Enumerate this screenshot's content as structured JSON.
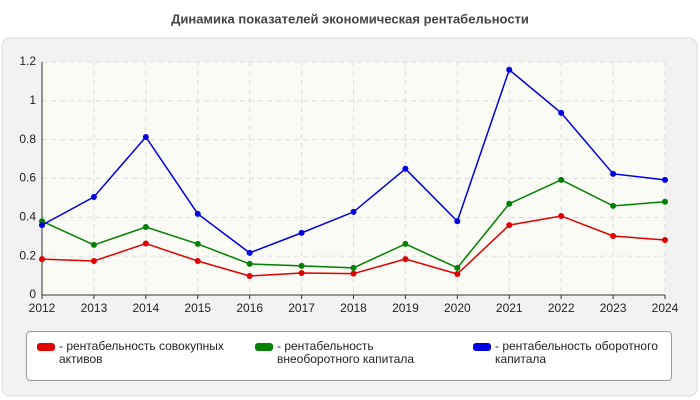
{
  "chart_data": {
    "type": "line",
    "title": "Динамика показателей экономическая рентабельности",
    "categories": [
      "2012",
      "2013",
      "2014",
      "2015",
      "2016",
      "2017",
      "2018",
      "2019",
      "2020",
      "2021",
      "2022",
      "2023",
      "2024"
    ],
    "series": [
      {
        "name": "- рентабельность совокупных активов",
        "color": "#e00000",
        "values": [
          0.185,
          0.175,
          0.265,
          0.175,
          0.098,
          0.113,
          0.11,
          0.185,
          0.108,
          0.36,
          0.407,
          0.304,
          0.283
        ]
      },
      {
        "name": "- рентабельность внеоборотного капитала",
        "color": "#008000",
        "values": [
          0.38,
          0.258,
          0.35,
          0.263,
          0.16,
          0.15,
          0.14,
          0.263,
          0.14,
          0.47,
          0.593,
          0.459,
          0.48
        ]
      },
      {
        "name": "- рентабельность оборотного капитала",
        "color": "#0000e0",
        "values": [
          0.36,
          0.505,
          0.814,
          0.418,
          0.217,
          0.32,
          0.428,
          0.65,
          0.38,
          1.16,
          0.938,
          0.624,
          0.593
        ]
      }
    ],
    "ylim": [
      0,
      1.2
    ],
    "yticks": [
      0,
      0.2,
      0.4,
      0.6,
      0.8,
      1,
      1.2
    ],
    "grid": true
  }
}
